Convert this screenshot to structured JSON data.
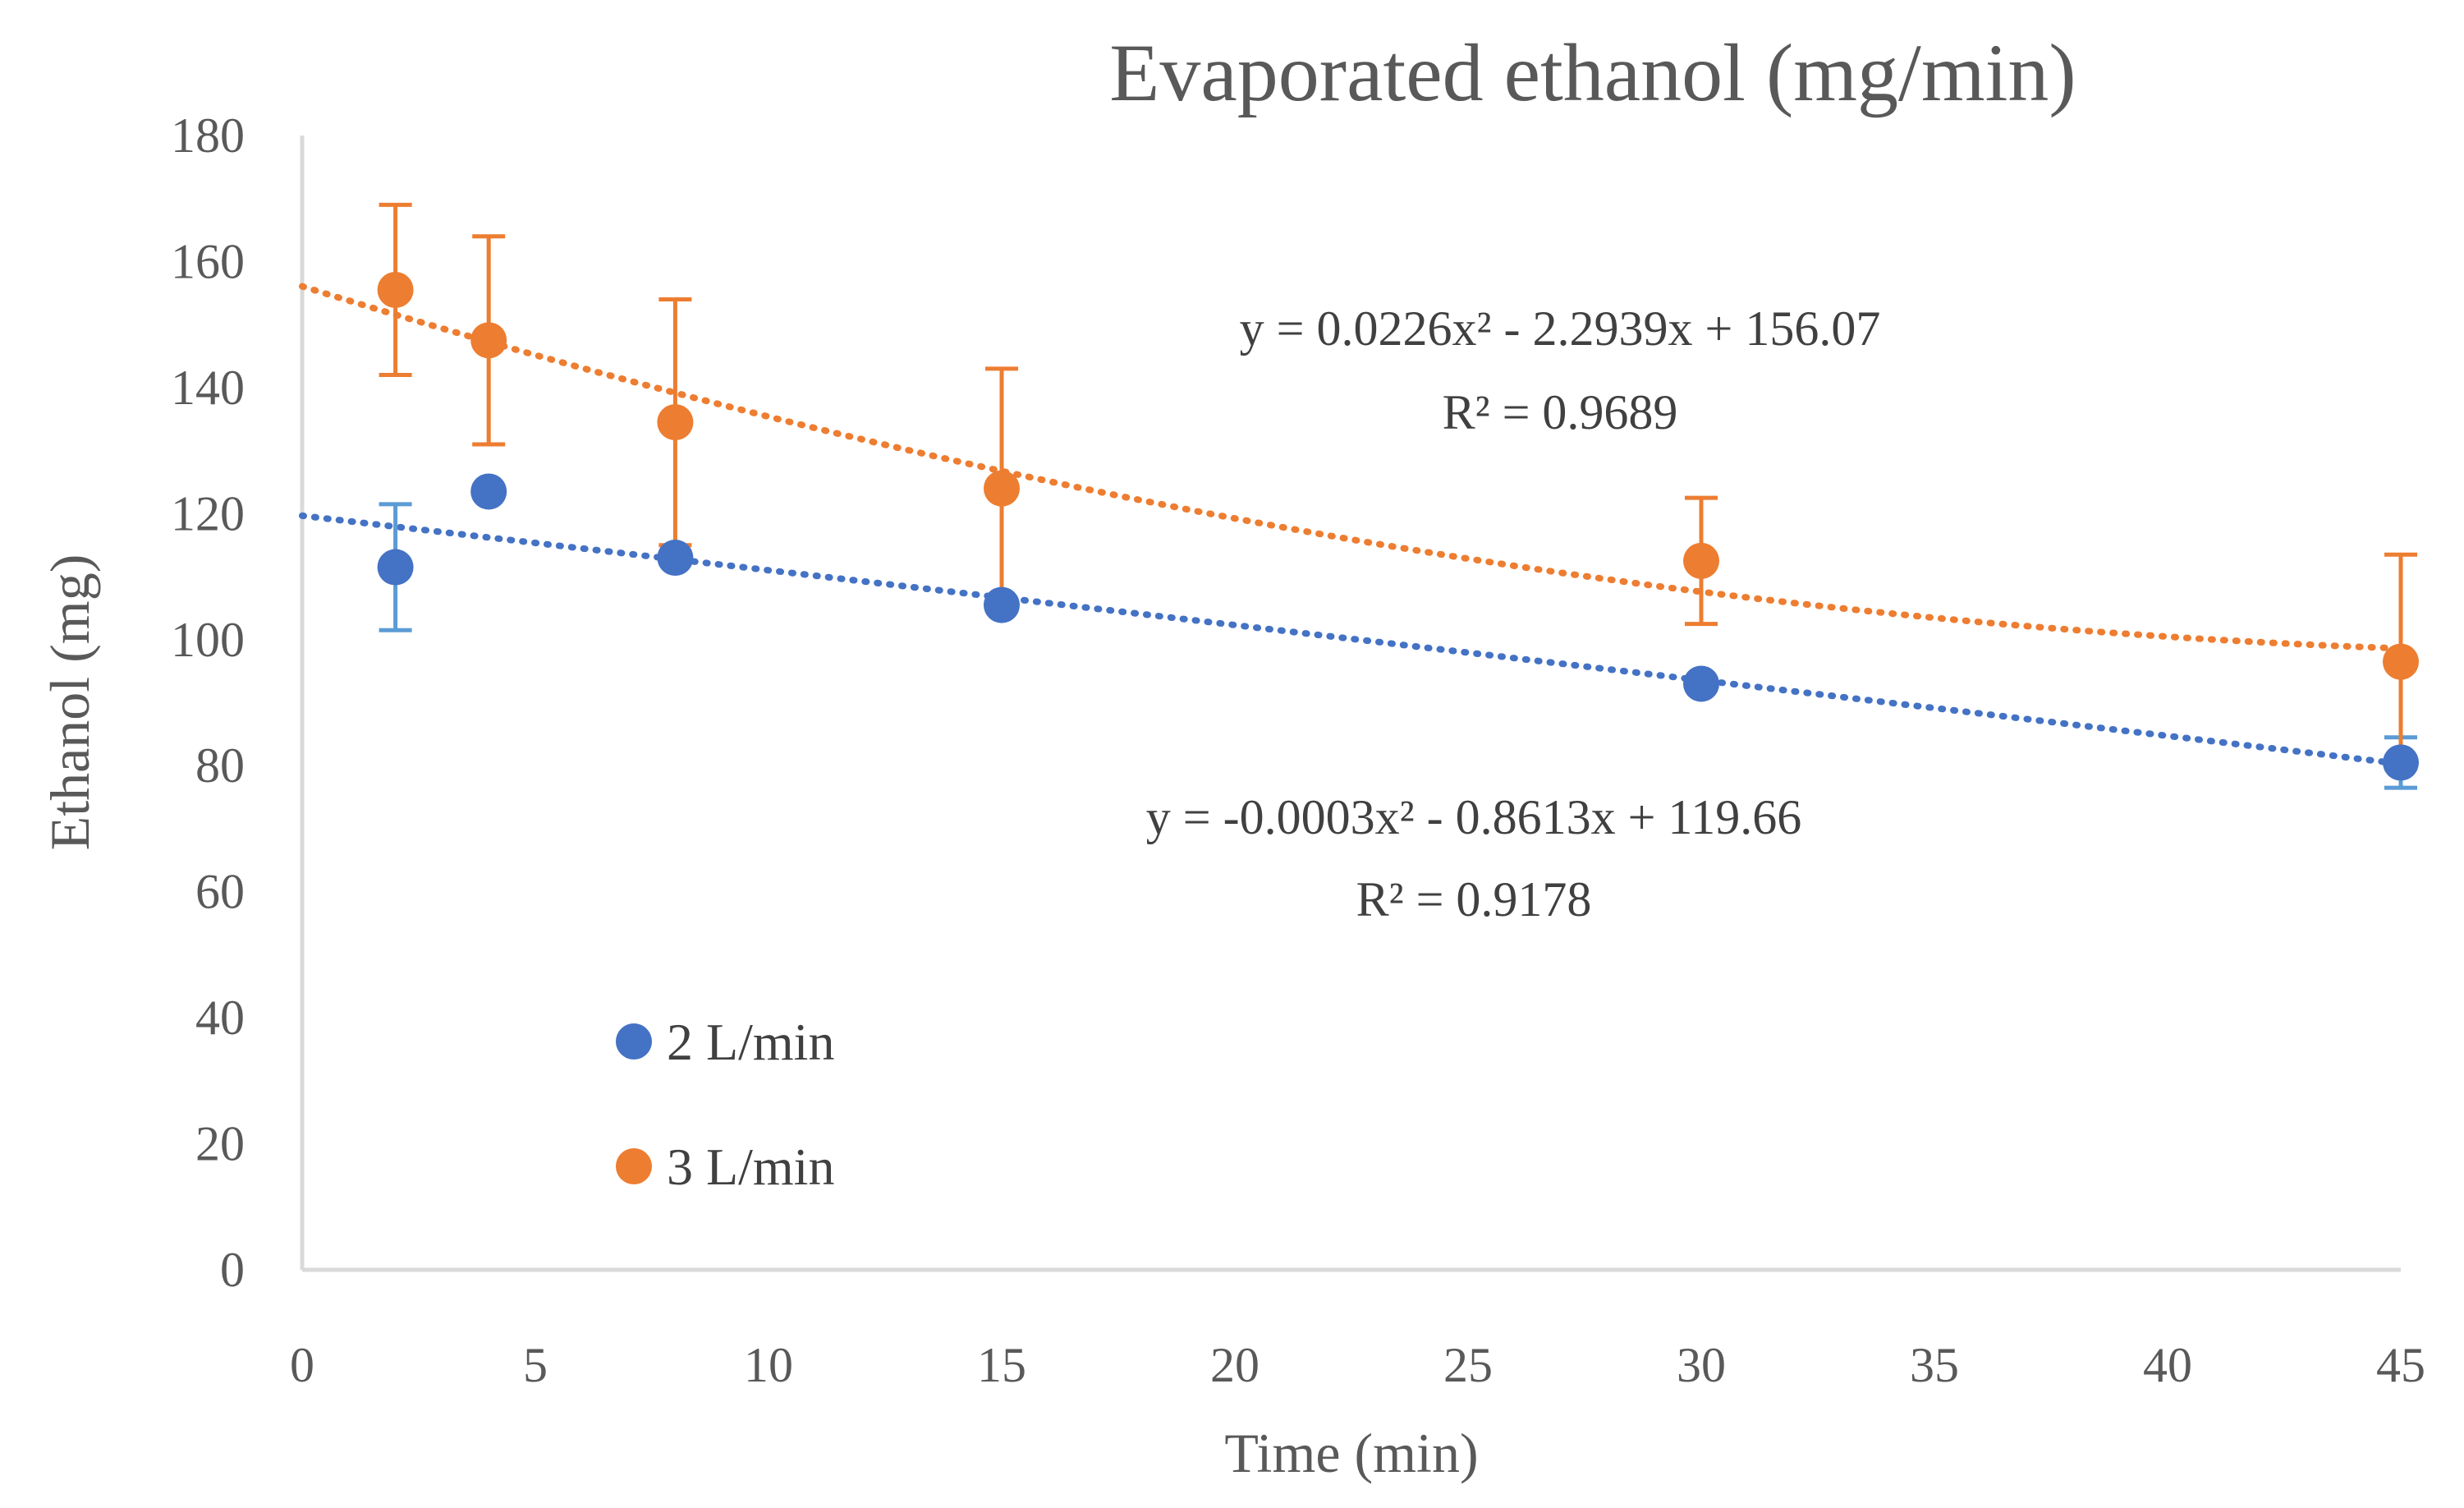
{
  "chart_data": {
    "type": "scatter",
    "title": "Evaporated ethanol (mg/min)",
    "xlabel": "Time (min)",
    "ylabel": "Ethanol (mg)",
    "xlim": [
      0,
      45
    ],
    "ylim": [
      0,
      180
    ],
    "xticks": [
      "0",
      "5",
      "10",
      "15",
      "20",
      "25",
      "30",
      "35",
      "40",
      "45"
    ],
    "yticks": [
      "0",
      "20",
      "40",
      "60",
      "80",
      "100",
      "120",
      "140",
      "160",
      "180"
    ],
    "grid": false,
    "legend_position": "lower-left",
    "series": [
      {
        "name": "2 L/min",
        "color": "#4472C4",
        "x": [
          2,
          4,
          8,
          15,
          30,
          45
        ],
        "y": [
          111.5,
          123.5,
          113,
          105.5,
          93,
          80.5
        ],
        "err": [
          10,
          0,
          0,
          0,
          0,
          4
        ],
        "trend": {
          "type": "polynomial",
          "a": -0.0003,
          "b": -0.8613,
          "c": 119.66
        },
        "equation": "y = -0.0003x² - 0.8613x + 119.66",
        "r2": "R² = 0.9178"
      },
      {
        "name": "3 L/min",
        "color": "#ED7D31",
        "x": [
          2,
          4,
          8,
          15,
          30,
          45
        ],
        "y": [
          155.5,
          147.5,
          134.5,
          124,
          112.5,
          96.5
        ],
        "err": [
          13.5,
          16.5,
          19.5,
          19,
          10,
          17
        ],
        "trend": {
          "type": "polynomial",
          "a": 0.0226,
          "b": -2.2939,
          "c": 156.07
        },
        "equation": "y = 0.0226x² - 2.2939x + 156.07",
        "r2": "R² = 0.9689"
      }
    ]
  }
}
